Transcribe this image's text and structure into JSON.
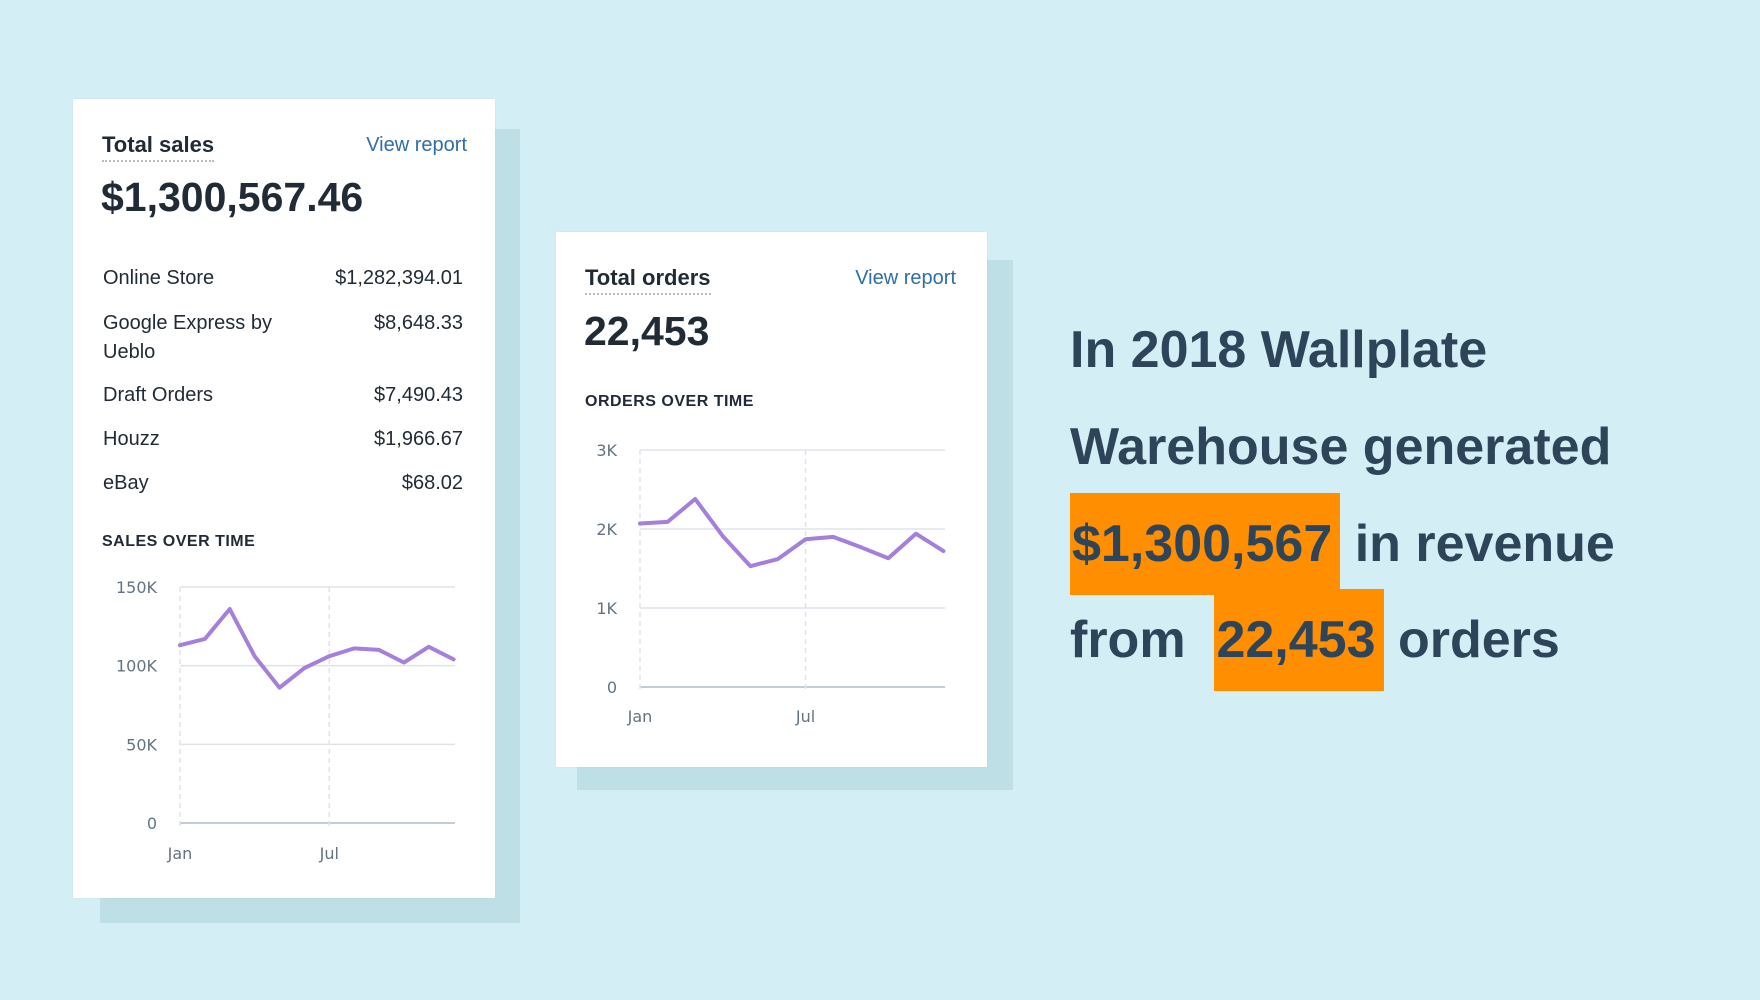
{
  "sales_card": {
    "title": "Total sales",
    "link": "View report",
    "total": "$1,300,567.46",
    "rows": [
      {
        "label": "Online Store",
        "value": "$1,282,394.01"
      },
      {
        "label": "Google Express by Ueblo",
        "value": "$8,648.33"
      },
      {
        "label": "Draft Orders",
        "value": "$7,490.43"
      },
      {
        "label": "Houzz",
        "value": "$1,966.67"
      },
      {
        "label": "eBay",
        "value": "$68.02"
      }
    ],
    "chart_title": "SALES OVER TIME"
  },
  "orders_card": {
    "title": "Total orders",
    "link": "View report",
    "total": "22,453",
    "chart_title": "ORDERS OVER TIME"
  },
  "headline": {
    "line1": "In 2018 Wallplate",
    "line2": "Warehouse generated",
    "revenue": "$1,300,567",
    "line3_rest": "in revenue",
    "line4_start": "from",
    "orders": "22,453",
    "line4_rest": "orders",
    "highlight_color": "#ff8e00",
    "text_color": "#2d4459"
  },
  "colors": {
    "background": "#d4eef5",
    "line": "#a57fdc",
    "link": "#2f6ea6"
  },
  "chart_data": [
    {
      "type": "line",
      "title": "SALES OVER TIME",
      "x": [
        "Jan",
        "Feb",
        "Mar",
        "Apr",
        "May",
        "Jun",
        "Jul",
        "Aug",
        "Sep",
        "Oct",
        "Nov",
        "Dec"
      ],
      "x_tick_labels": [
        "Jan",
        "Jul"
      ],
      "values": [
        113000,
        117000,
        136000,
        106000,
        86000,
        98500,
        106000,
        111000,
        110000,
        102000,
        112000,
        104000
      ],
      "y_ticks": [
        "0",
        "50K",
        "100K",
        "150K"
      ],
      "ylim": [
        0,
        150000
      ],
      "grid": true
    },
    {
      "type": "line",
      "title": "ORDERS OVER TIME",
      "x": [
        "Jan",
        "Feb",
        "Mar",
        "Apr",
        "May",
        "Jun",
        "Jul",
        "Aug",
        "Sep",
        "Oct",
        "Nov",
        "Dec"
      ],
      "x_tick_labels": [
        "Jan",
        "Jul"
      ],
      "values": [
        2070,
        2090,
        2380,
        1910,
        1530,
        1620,
        1870,
        1900,
        1770,
        1630,
        1940,
        1720
      ],
      "y_ticks": [
        "0",
        "1K",
        "2K",
        "3K"
      ],
      "ylim": [
        0,
        3000
      ],
      "grid": true
    }
  ]
}
